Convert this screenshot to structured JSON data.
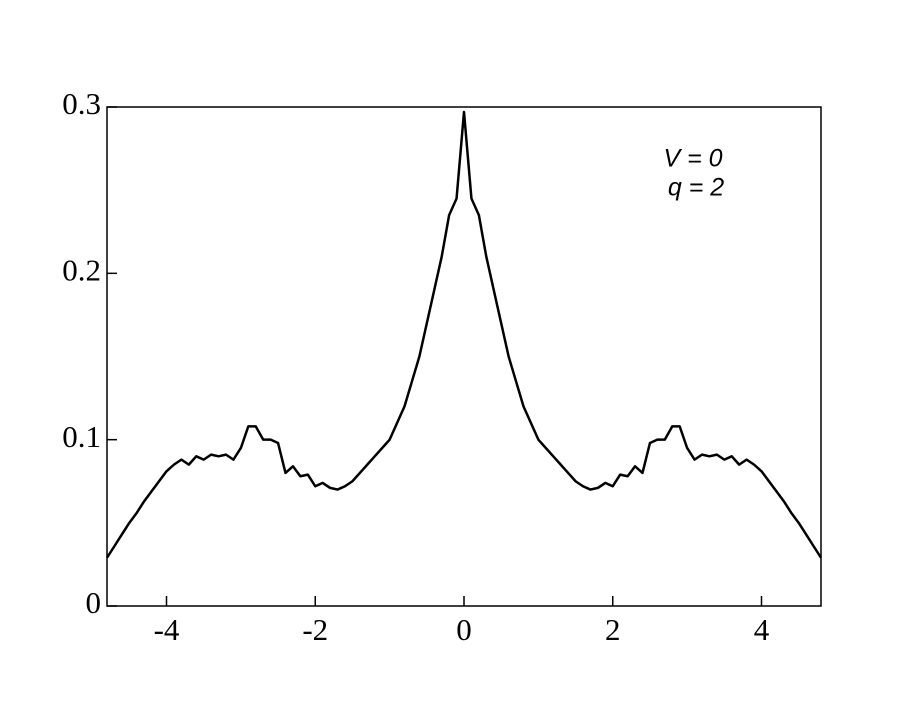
{
  "chart_data": {
    "type": "line",
    "annotations": [
      "V = 0",
      "q = 2"
    ],
    "x": [
      -4.8,
      -4.7,
      -4.6,
      -4.5,
      -4.4,
      -4.3,
      -4.2,
      -4.1,
      -4.0,
      -3.9,
      -3.8,
      -3.7,
      -3.6,
      -3.5,
      -3.4,
      -3.3,
      -3.2,
      -3.1,
      -3.0,
      -2.9,
      -2.8,
      -2.7,
      -2.6,
      -2.5,
      -2.4,
      -2.3,
      -2.2,
      -2.1,
      -2.0,
      -1.9,
      -1.8,
      -1.7,
      -1.6,
      -1.5,
      -1.4,
      -1.3,
      -1.2,
      -1.1,
      -1.0,
      -0.9,
      -0.8,
      -0.7,
      -0.6,
      -0.5,
      -0.4,
      -0.3,
      -0.2,
      -0.1,
      0,
      0.1,
      0.2,
      0.3,
      0.4,
      0.5,
      0.6,
      0.7,
      0.8,
      0.9,
      1.0,
      1.1,
      1.2,
      1.3,
      1.4,
      1.5,
      1.6,
      1.7,
      1.8,
      1.9,
      2.0,
      2.1,
      2.2,
      2.3,
      2.4,
      2.5,
      2.6,
      2.7,
      2.8,
      2.9,
      3.0,
      3.1,
      3.2,
      3.3,
      3.4,
      3.5,
      3.6,
      3.7,
      3.8,
      3.9,
      4.0,
      4.1,
      4.2,
      4.3,
      4.4,
      4.5,
      4.6,
      4.7,
      4.8
    ],
    "series": [
      {
        "color": "#000000",
        "values": [
          0.029,
          0.036,
          0.043,
          0.05,
          0.056,
          0.063,
          0.069,
          0.075,
          0.081,
          0.085,
          0.088,
          0.085,
          0.09,
          0.088,
          0.091,
          0.09,
          0.091,
          0.088,
          0.095,
          0.108,
          0.108,
          0.1,
          0.1,
          0.098,
          0.08,
          0.084,
          0.078,
          0.079,
          0.072,
          0.074,
          0.071,
          0.07,
          0.072,
          0.075,
          0.08,
          0.085,
          0.09,
          0.095,
          0.1,
          0.11,
          0.12,
          0.135,
          0.15,
          0.17,
          0.19,
          0.21,
          0.235,
          0.245,
          0.297,
          0.245,
          0.235,
          0.21,
          0.19,
          0.17,
          0.15,
          0.135,
          0.12,
          0.11,
          0.1,
          0.095,
          0.09,
          0.085,
          0.08,
          0.075,
          0.072,
          0.07,
          0.071,
          0.074,
          0.072,
          0.079,
          0.078,
          0.084,
          0.08,
          0.098,
          0.1,
          0.1,
          0.108,
          0.108,
          0.095,
          0.088,
          0.091,
          0.09,
          0.091,
          0.088,
          0.09,
          0.085,
          0.088,
          0.085,
          0.081,
          0.075,
          0.069,
          0.063,
          0.056,
          0.05,
          0.043,
          0.036,
          0.029
        ]
      }
    ],
    "xlim": [
      -4.8,
      4.8
    ],
    "ylim": [
      0,
      0.3
    ],
    "xticks": [
      -4,
      -2,
      0,
      2,
      4
    ],
    "yticks": [
      0,
      0.1,
      0.2,
      0.3
    ]
  }
}
